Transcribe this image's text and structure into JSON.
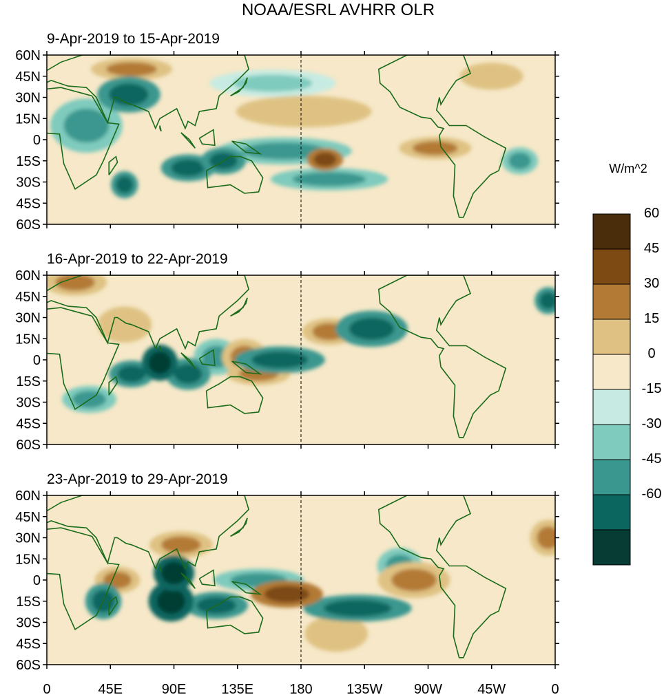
{
  "chart_data": {
    "type": "heatmap",
    "title": "NOAA/ESRL AVHRR OLR",
    "units": "W/m^2",
    "colorbar": {
      "levels": [
        "60",
        "45",
        "30",
        "15",
        "0",
        "-15",
        "-30",
        "-45",
        "-60"
      ],
      "colors": [
        "#4a2e0c",
        "#7d4a14",
        "#b37a36",
        "#dfc283",
        "#f6e8c8",
        "#c7ebe2",
        "#7fcbbd",
        "#3a978f",
        "#0b6660",
        "#063c33"
      ]
    },
    "x_ticks": [
      "0",
      "45E",
      "90E",
      "135E",
      "180",
      "135W",
      "90W",
      "45W",
      "0"
    ],
    "y_ticks": [
      "60N",
      "45N",
      "30N",
      "15N",
      "0",
      "15S",
      "30S",
      "45S",
      "60S"
    ],
    "x_range_deg_east": [
      0,
      360
    ],
    "y_range_deg": [
      -60,
      60
    ],
    "panels": [
      {
        "label": "9-Apr-2019 to 15-Apr-2019",
        "anomalies": [
          {
            "lon": 100,
            "lat": -20,
            "rx": 12,
            "ry": 6,
            "value": -45
          },
          {
            "lon": 125,
            "lat": -15,
            "rx": 10,
            "ry": 6,
            "value": -45
          },
          {
            "lon": 58,
            "lat": 32,
            "rx": 14,
            "ry": 8,
            "value": -45
          },
          {
            "lon": 28,
            "lat": 10,
            "rx": 16,
            "ry": 12,
            "value": -30
          },
          {
            "lon": 55,
            "lat": -32,
            "rx": 6,
            "ry": 6,
            "value": -45
          },
          {
            "lon": 168,
            "lat": -8,
            "rx": 30,
            "ry": 6,
            "value": -30
          },
          {
            "lon": 200,
            "lat": -28,
            "rx": 26,
            "ry": 5,
            "value": -30
          },
          {
            "lon": 160,
            "lat": 40,
            "rx": 28,
            "ry": 6,
            "value": -15
          },
          {
            "lon": 335,
            "lat": -15,
            "rx": 8,
            "ry": 6,
            "value": -30
          },
          {
            "lon": 197,
            "lat": -14,
            "rx": 8,
            "ry": 5,
            "value": 45
          },
          {
            "lon": 275,
            "lat": -6,
            "rx": 16,
            "ry": 5,
            "value": 30
          },
          {
            "lon": 182,
            "lat": 20,
            "rx": 30,
            "ry": 7,
            "value": 15
          },
          {
            "lon": 60,
            "lat": 50,
            "rx": 18,
            "ry": 5,
            "value": 30
          },
          {
            "lon": 315,
            "lat": 45,
            "rx": 14,
            "ry": 6,
            "value": 15
          }
        ]
      },
      {
        "label": "16-Apr-2019 to 22-Apr-2019",
        "anomalies": [
          {
            "lon": 80,
            "lat": -2,
            "rx": 8,
            "ry": 8,
            "value": -60
          },
          {
            "lon": 100,
            "lat": -10,
            "rx": 10,
            "ry": 7,
            "value": -45
          },
          {
            "lon": 60,
            "lat": -10,
            "rx": 10,
            "ry": 6,
            "value": -45
          },
          {
            "lon": 165,
            "lat": 0,
            "rx": 20,
            "ry": 6,
            "value": -45
          },
          {
            "lon": 230,
            "lat": 22,
            "rx": 16,
            "ry": 8,
            "value": -45
          },
          {
            "lon": 120,
            "lat": 2,
            "rx": 10,
            "ry": 8,
            "value": -30
          },
          {
            "lon": 30,
            "lat": -28,
            "rx": 12,
            "ry": 6,
            "value": -30
          },
          {
            "lon": 355,
            "lat": 42,
            "rx": 6,
            "ry": 6,
            "value": -45
          },
          {
            "lon": 140,
            "lat": 2,
            "rx": 10,
            "ry": 8,
            "value": 30
          },
          {
            "lon": 150,
            "lat": -10,
            "rx": 14,
            "ry": 5,
            "value": 30
          },
          {
            "lon": 200,
            "lat": 20,
            "rx": 12,
            "ry": 6,
            "value": 30
          },
          {
            "lon": 20,
            "lat": 55,
            "rx": 14,
            "ry": 6,
            "value": 30
          },
          {
            "lon": 55,
            "lat": 25,
            "rx": 12,
            "ry": 8,
            "value": 15
          }
        ]
      },
      {
        "label": "23-Apr-2019 to 29-Apr-2019",
        "anomalies": [
          {
            "lon": 88,
            "lat": -15,
            "rx": 10,
            "ry": 9,
            "value": -60
          },
          {
            "lon": 90,
            "lat": 5,
            "rx": 9,
            "ry": 8,
            "value": -60
          },
          {
            "lon": 120,
            "lat": -18,
            "rx": 14,
            "ry": 6,
            "value": -45
          },
          {
            "lon": 40,
            "lat": -15,
            "rx": 8,
            "ry": 8,
            "value": -45
          },
          {
            "lon": 220,
            "lat": -20,
            "rx": 24,
            "ry": 6,
            "value": -45
          },
          {
            "lon": 150,
            "lat": 0,
            "rx": 20,
            "ry": 5,
            "value": -30
          },
          {
            "lon": 250,
            "lat": 10,
            "rx": 10,
            "ry": 8,
            "value": -30
          },
          {
            "lon": 170,
            "lat": -10,
            "rx": 16,
            "ry": 6,
            "value": 45
          },
          {
            "lon": 95,
            "lat": 25,
            "rx": 14,
            "ry": 6,
            "value": 30
          },
          {
            "lon": 260,
            "lat": 0,
            "rx": 16,
            "ry": 8,
            "value": 30
          },
          {
            "lon": 50,
            "lat": 0,
            "rx": 10,
            "ry": 6,
            "value": 30
          },
          {
            "lon": 205,
            "lat": -38,
            "rx": 14,
            "ry": 8,
            "value": 15
          },
          {
            "lon": 355,
            "lat": 30,
            "rx": 8,
            "ry": 8,
            "value": 30
          }
        ]
      }
    ]
  }
}
